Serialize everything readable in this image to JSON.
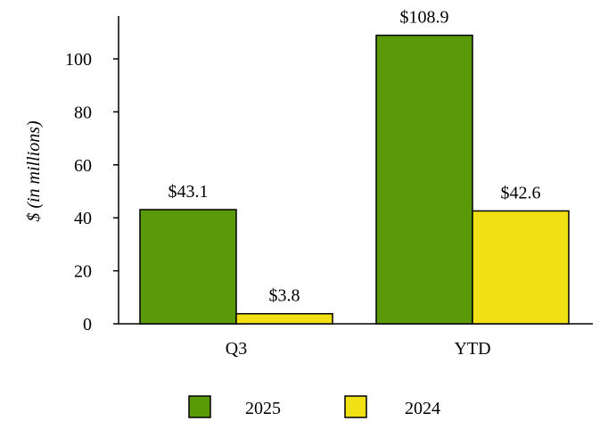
{
  "chart_data": {
    "type": "bar",
    "categories": [
      "Q3",
      "YTD"
    ],
    "series": [
      {
        "name": "2025",
        "values": [
          43.1,
          108.9
        ],
        "labels": [
          "$43.1",
          "$108.9"
        ],
        "color": "#5a9a08"
      },
      {
        "name": "2024",
        "values": [
          3.8,
          42.6
        ],
        "labels": [
          "$3.8",
          "$42.6"
        ],
        "color": "#f0e014"
      }
    ],
    "ylabel": "$ (in millions)",
    "ylim": [
      0,
      115
    ],
    "yticks": [
      0,
      20,
      40,
      60,
      80,
      100
    ],
    "grid": false,
    "legend_position": "bottom"
  }
}
